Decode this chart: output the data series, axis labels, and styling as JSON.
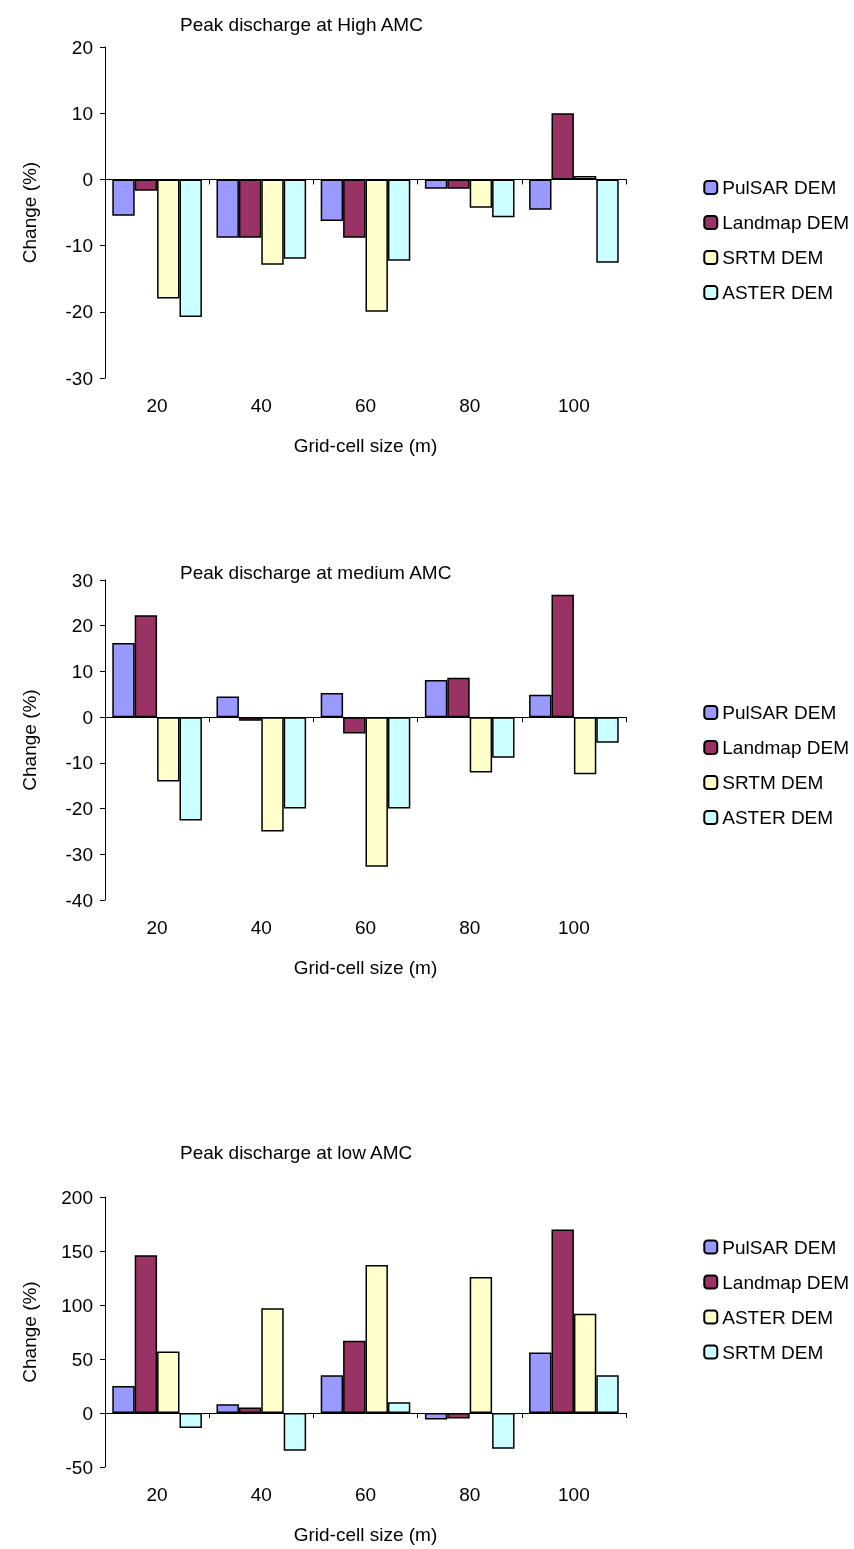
{
  "chart_data": [
    {
      "type": "bar",
      "title": "Peak discharge at High AMC",
      "xlabel": "Grid-cell size (m)",
      "ylabel": "Change (%)",
      "categories": [
        "20",
        "40",
        "60",
        "80",
        "100"
      ],
      "series": [
        {
          "name": "PulSAR DEM",
          "color": "#9999ff",
          "values": [
            -5.5,
            -8.8,
            -6.3,
            -1.4,
            -4.6
          ]
        },
        {
          "name": "Landmap DEM",
          "color": "#993366",
          "values": [
            -1.7,
            -8.8,
            -8.8,
            -1.4,
            10
          ]
        },
        {
          "name": "SRTM DEM",
          "color": "#ffffcc",
          "values": [
            -18,
            -12.9,
            -20,
            -4.3,
            0.5
          ]
        },
        {
          "name": "ASTER DEM",
          "color": "#ccffff",
          "values": [
            -20.8,
            -12,
            -12.3,
            -5.7,
            -12.6
          ]
        }
      ],
      "ylim": [
        -30,
        20
      ],
      "yticks": [
        -30,
        -20,
        -10,
        0,
        10,
        20
      ],
      "legend": "right"
    },
    {
      "type": "bar",
      "title": "Peak discharge at medium AMC",
      "xlabel": "Grid-cell size (m)",
      "ylabel": "Change (%)",
      "categories": [
        "20",
        "40",
        "60",
        "80",
        "100"
      ],
      "series": [
        {
          "name": "PulSAR DEM",
          "color": "#9999ff",
          "values": [
            16.2,
            4.5,
            5.3,
            8.1,
            4.9
          ]
        },
        {
          "name": "Landmap DEM",
          "color": "#993366",
          "values": [
            22.3,
            -0.8,
            -3.6,
            8.6,
            26.8
          ]
        },
        {
          "name": "SRTM DEM",
          "color": "#ffffcc",
          "values": [
            -14.1,
            -25,
            -32.7,
            -12.1,
            -12.5
          ]
        },
        {
          "name": "ASTER DEM",
          "color": "#ccffff",
          "values": [
            -22.6,
            -20,
            -20,
            -8.9,
            -5.6
          ]
        }
      ],
      "ylim": [
        -40,
        30
      ],
      "yticks": [
        -40,
        -30,
        -20,
        -10,
        0,
        10,
        20,
        30
      ],
      "legend": "right"
    },
    {
      "type": "bar",
      "title": "Peak discharge at low AMC",
      "xlabel": "Grid-cell size (m)",
      "ylabel": "Change (%)",
      "categories": [
        "20",
        "40",
        "60",
        "80",
        "100"
      ],
      "series": [
        {
          "name": "PulSAR DEM",
          "color": "#9999ff",
          "values": [
            25,
            8,
            35,
            -6,
            56
          ]
        },
        {
          "name": "Landmap DEM",
          "color": "#993366",
          "values": [
            146,
            5,
            67,
            -5,
            170
          ]
        },
        {
          "name": "ASTER DEM",
          "color": "#ffffcc",
          "values": [
            57,
            97,
            137,
            126,
            92
          ]
        },
        {
          "name": "SRTM DEM",
          "color": "#ccffff",
          "values": [
            -14,
            -35,
            10,
            -33,
            35
          ]
        }
      ],
      "ylim": [
        -50,
        200
      ],
      "yticks": [
        -50,
        0,
        50,
        100,
        150,
        200
      ],
      "legend": "right"
    }
  ]
}
